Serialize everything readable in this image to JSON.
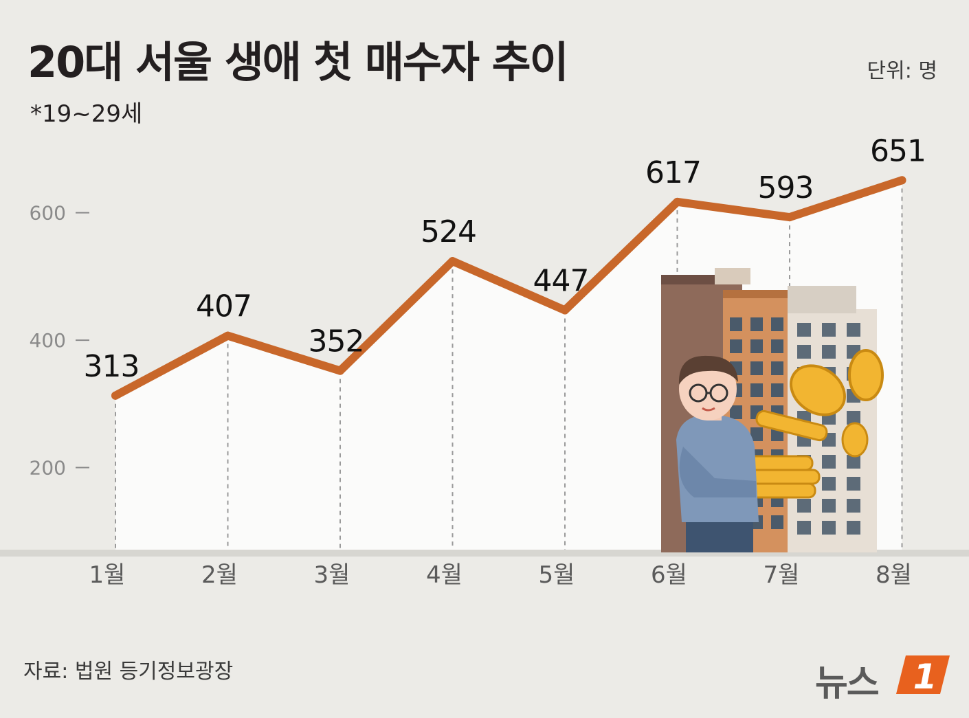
{
  "header": {
    "title": "20대 서울 생애 첫 매수자 추이",
    "subtitle": "*19~29세",
    "unit": "단위: 명"
  },
  "footer": {
    "source": "자료: 법원 등기정보광장",
    "logo_text": "뉴스",
    "logo_mark": "1"
  },
  "colors": {
    "line": "#c8672a",
    "background": "#ecebe7",
    "plot_fill": "#fbfbfa",
    "logo_accent": "#e8611e"
  },
  "chart_data": {
    "type": "area",
    "categories": [
      "1월",
      "2월",
      "3월",
      "4월",
      "5월",
      "6월",
      "7월",
      "8월"
    ],
    "values": [
      313,
      407,
      352,
      524,
      447,
      617,
      593,
      651
    ],
    "yticks": [
      200,
      400,
      600
    ],
    "ylim": [
      80,
      800
    ],
    "grid": false,
    "legend": "none"
  }
}
